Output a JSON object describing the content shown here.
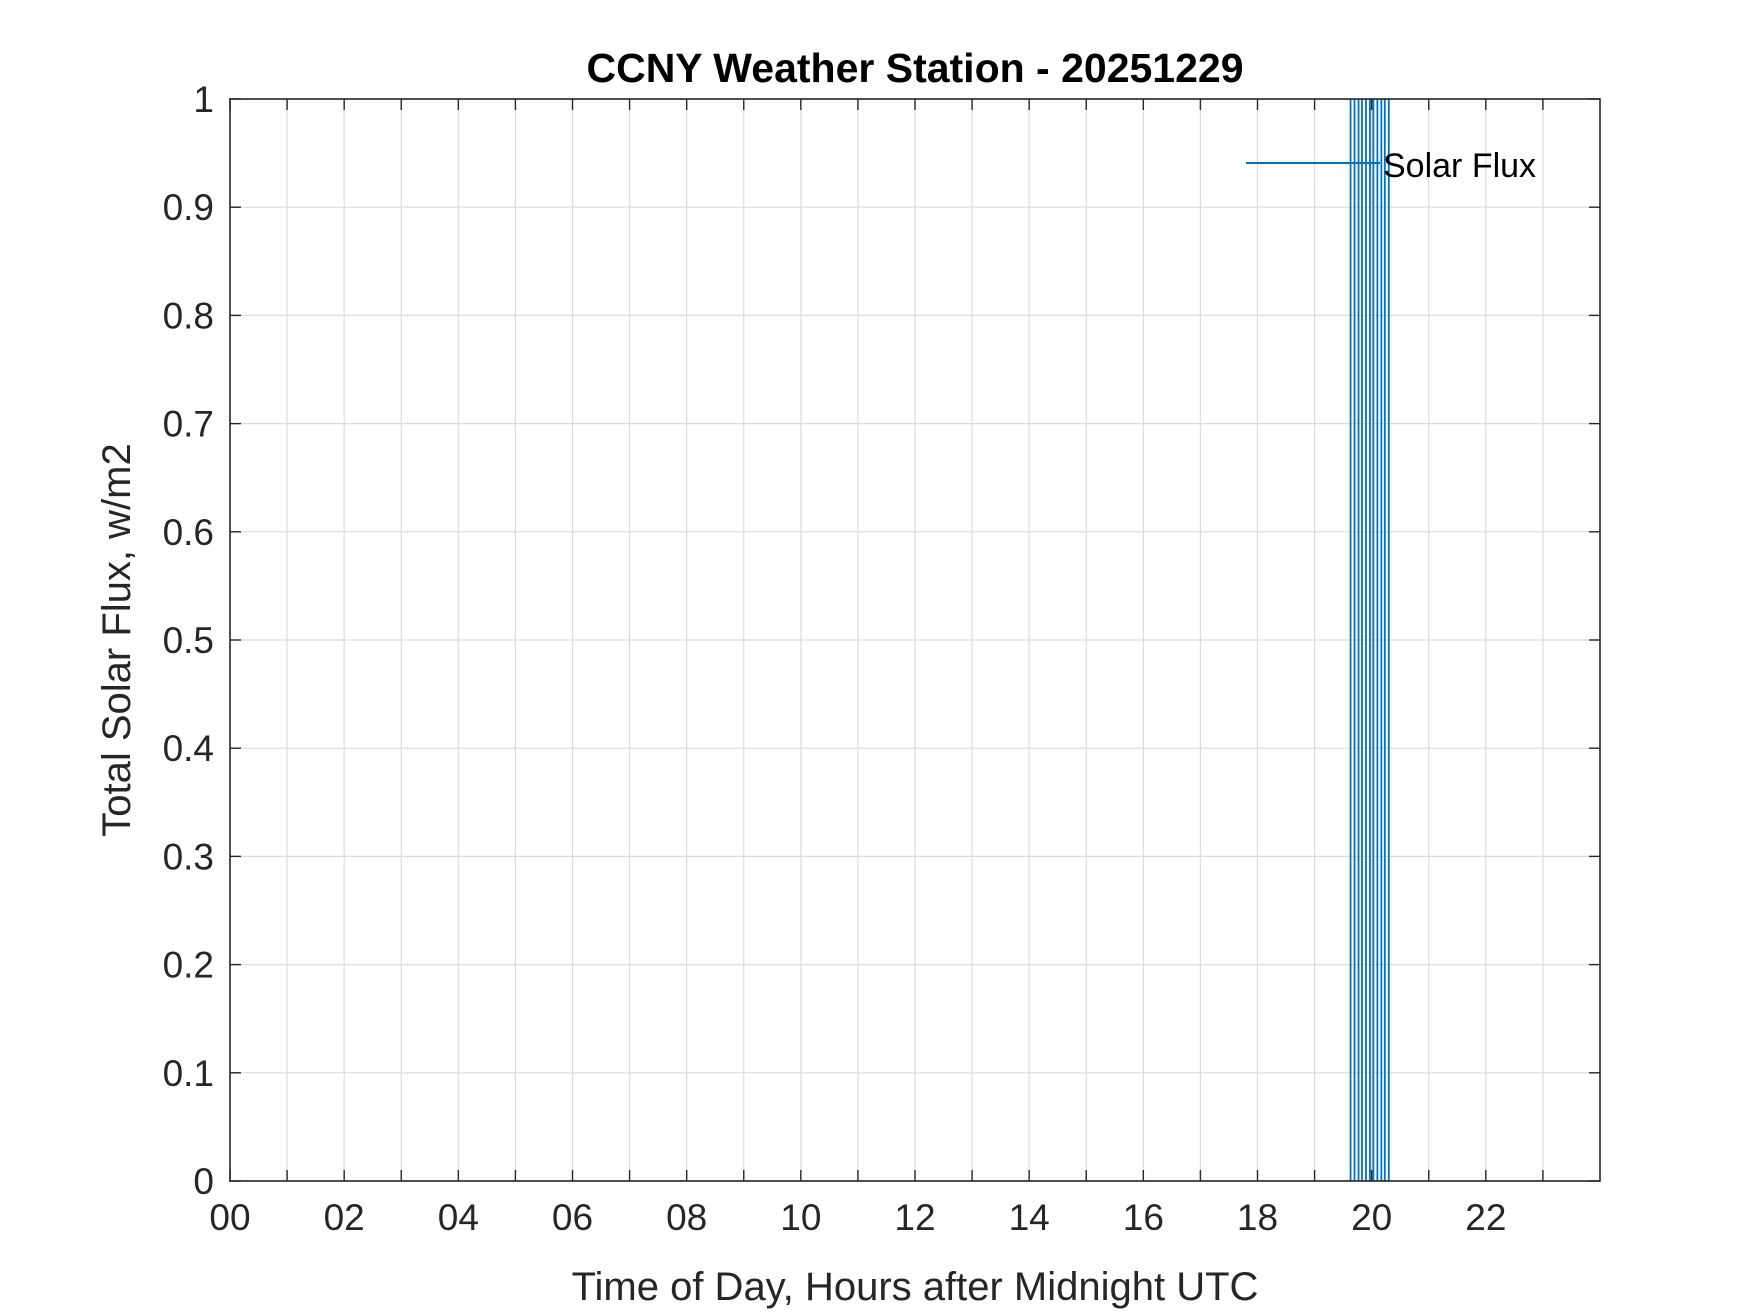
{
  "chart_data": {
    "type": "line",
    "title": "CCNY Weather Station - 20251229",
    "xlabel": "Time of Day, Hours after Midnight UTC",
    "ylabel": "Total Solar Flux, w/m2",
    "xlim": [
      0,
      24
    ],
    "ylim": [
      0,
      1
    ],
    "x_ticks": [
      0,
      2,
      4,
      6,
      8,
      10,
      12,
      14,
      16,
      18,
      20,
      22
    ],
    "x_tick_labels": [
      "00",
      "02",
      "04",
      "06",
      "08",
      "10",
      "12",
      "14",
      "16",
      "18",
      "20",
      "22"
    ],
    "x_minor_ticks": [
      1,
      3,
      5,
      7,
      9,
      11,
      13,
      15,
      17,
      19,
      21,
      23
    ],
    "y_ticks": [
      0,
      0.1,
      0.2,
      0.3,
      0.4,
      0.5,
      0.6,
      0.7,
      0.8,
      0.9,
      1
    ],
    "y_tick_labels": [
      "0",
      "0.1",
      "0.2",
      "0.3",
      "0.4",
      "0.5",
      "0.6",
      "0.7",
      "0.8",
      "0.9",
      "1"
    ],
    "grid": true,
    "legend_position": "top-right",
    "series": [
      {
        "name": "Solar Flux",
        "color": "#0072BD",
        "vertical_lines_at_x": [
          19.63,
          19.7,
          19.77,
          19.83,
          19.9,
          19.97,
          20.03,
          20.1,
          20.17,
          20.23,
          20.3
        ]
      }
    ]
  }
}
